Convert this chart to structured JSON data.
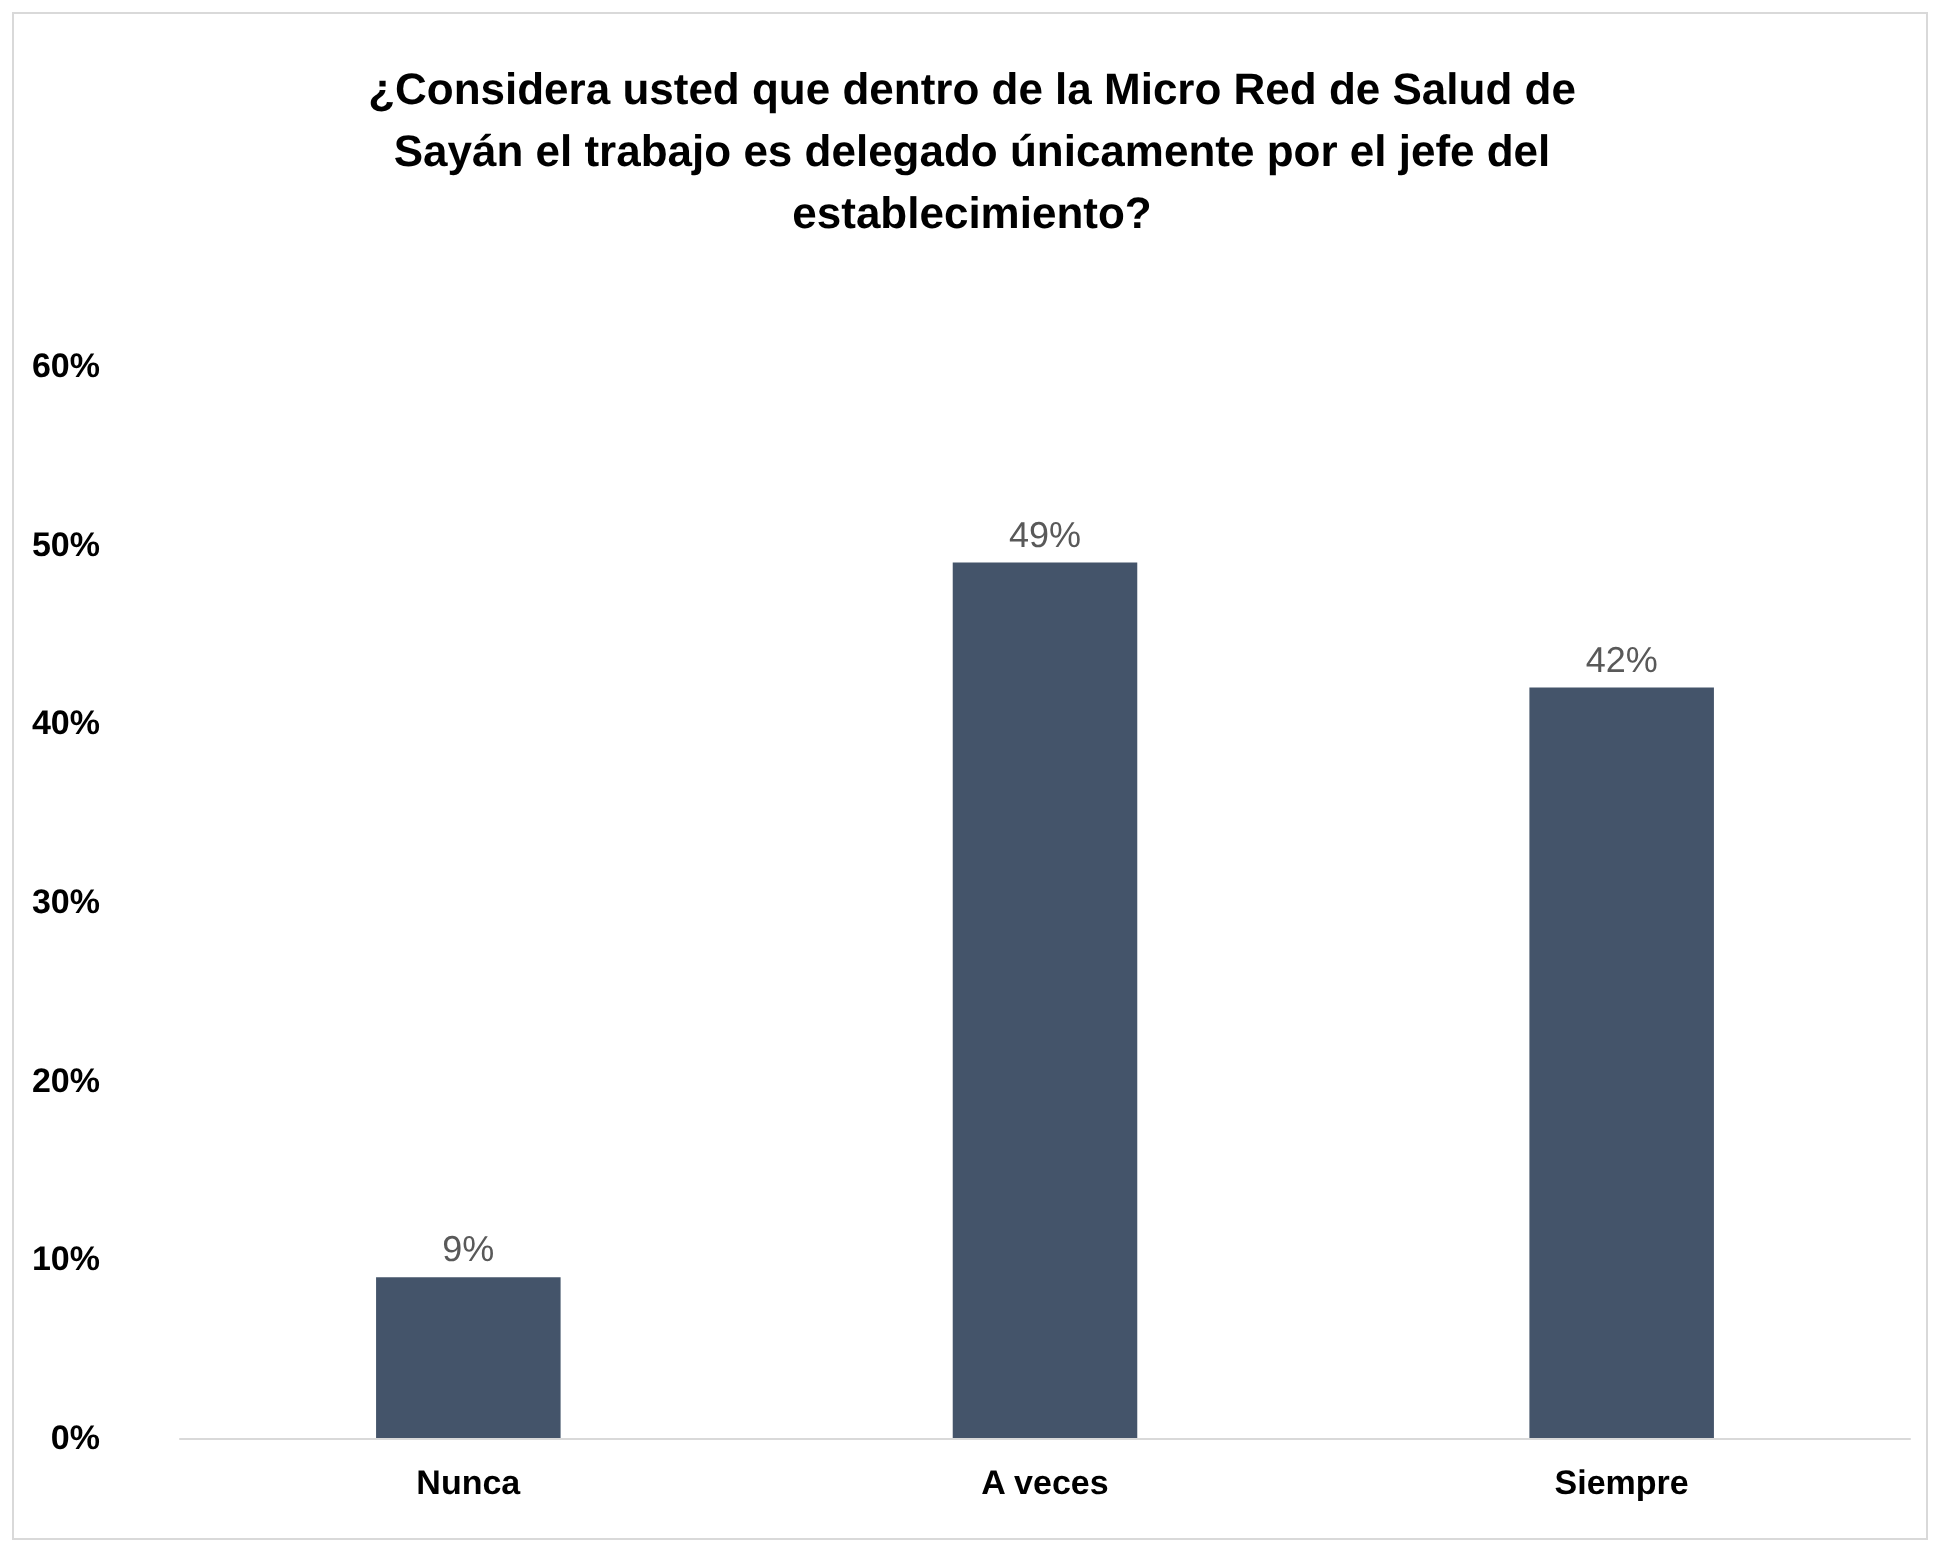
{
  "chart_data": {
    "type": "bar",
    "title": "¿Considera usted que dentro de la Micro Red de Salud de Sayán el trabajo es delegado únicamente por el jefe del establecimiento?",
    "categories": [
      "Nunca",
      "A veces",
      "Siempre"
    ],
    "values": [
      9,
      49,
      42
    ],
    "value_labels": [
      "9%",
      "49%",
      "42%"
    ],
    "color": "#44546a",
    "ylim": [
      0,
      60
    ],
    "yticks": [
      {
        "value": 0,
        "label": "0%"
      },
      {
        "value": 10,
        "label": "10%"
      },
      {
        "value": 20,
        "label": "20%"
      },
      {
        "value": 30,
        "label": "30%"
      },
      {
        "value": 40,
        "label": "40%"
      },
      {
        "value": 50,
        "label": "50%"
      },
      {
        "value": 60,
        "label": "60%"
      }
    ],
    "grid": false
  }
}
